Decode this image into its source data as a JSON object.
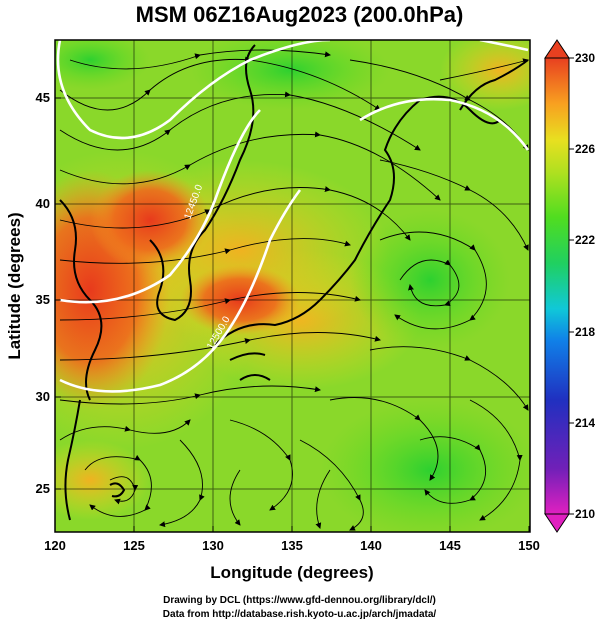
{
  "title": "MSM 06Z16Aug2023 (200.0hPa)",
  "x_axis": {
    "label": "Longitude (degrees)",
    "ticks": [
      "120",
      "125",
      "130",
      "135",
      "140",
      "145",
      "150"
    ]
  },
  "y_axis": {
    "label": "Latitude  (degrees)",
    "ticks": [
      "25",
      "30",
      "35",
      "40",
      "45"
    ]
  },
  "colorbar": {
    "ticks": [
      "230",
      "226",
      "222",
      "218",
      "214",
      "210"
    ],
    "range": [
      210,
      230
    ],
    "colors": [
      "#e020c0",
      "#3020b0",
      "#1060e0",
      "#10c0e0",
      "#20d060",
      "#40dd20",
      "#a0e020",
      "#e0e020",
      "#f8a020",
      "#e84020"
    ]
  },
  "contour_labels": [
    "12450.0",
    "12500.0"
  ],
  "credits": {
    "line1": "Drawing by DCL (https://www.gfd-dennou.org/library/dcl/)",
    "line2": "Data from http://database.rish.kyoto-u.ac.jp/arch/jmadata/"
  }
}
